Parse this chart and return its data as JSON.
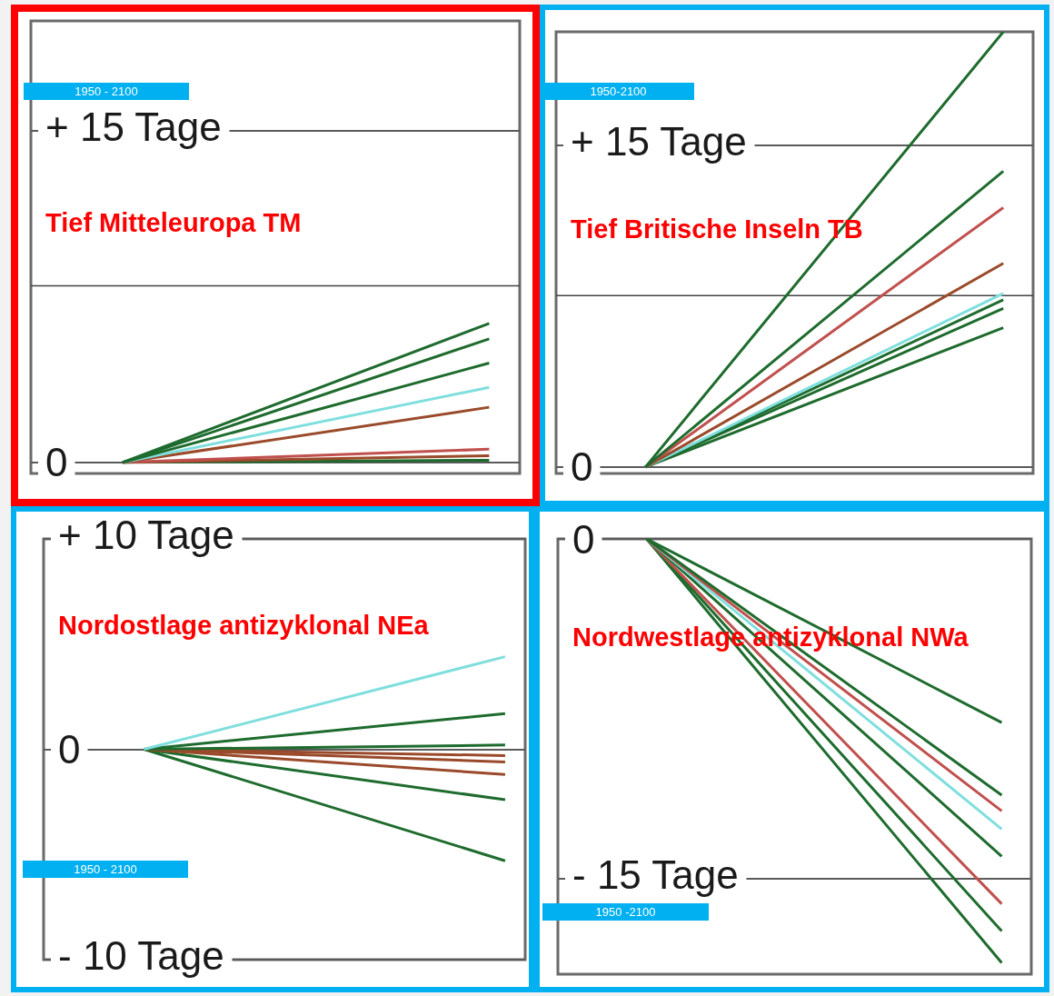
{
  "chart_data": [
    {
      "type": "line",
      "title": "Tief Mitteleuropa TM",
      "annotations": [
        "1950 - 2100"
      ],
      "categories": [
        null,
        null,
        null,
        null,
        null,
        null,
        null,
        null
      ],
      "ylim": [
        -0.5,
        20
      ],
      "yticks": [
        {
          "value": 15,
          "label": "+ 15 Tage"
        },
        {
          "value": 0,
          "label": "0"
        }
      ],
      "tick_labels": "y",
      "grid": "y",
      "marker": "none",
      "ref_lines": [
        {
          "axis": "y",
          "value": 8,
          "color": "#444444"
        }
      ],
      "series": [
        {
          "color": "#1e6b2e",
          "values": [
            null,
            0,
            null,
            null,
            null,
            null,
            null,
            6.3
          ]
        },
        {
          "color": "#1e6b2e",
          "values": [
            null,
            0,
            null,
            null,
            null,
            null,
            null,
            5.6
          ]
        },
        {
          "color": "#1e6b2e",
          "values": [
            null,
            0,
            null,
            null,
            null,
            null,
            null,
            4.5
          ]
        },
        {
          "color": "#7fdede",
          "values": [
            null,
            0,
            null,
            null,
            null,
            null,
            null,
            3.4
          ]
        },
        {
          "color": "#9a4a2a",
          "values": [
            null,
            0,
            null,
            null,
            null,
            null,
            null,
            2.5
          ]
        },
        {
          "color": "#c0504d",
          "values": [
            null,
            0,
            null,
            null,
            null,
            null,
            null,
            0.6
          ]
        },
        {
          "color": "#9a4a2a",
          "values": [
            null,
            0,
            null,
            null,
            null,
            null,
            null,
            0.3
          ]
        },
        {
          "color": "#1e6b2e",
          "values": [
            null,
            0,
            null,
            null,
            null,
            null,
            null,
            0.1
          ]
        }
      ]
    },
    {
      "type": "line",
      "title": "Tief Britische Inseln TB",
      "annotations": [
        "1950-2100"
      ],
      "categories": [
        null,
        null,
        null,
        null,
        null,
        null,
        null,
        null
      ],
      "ylim": [
        -0.3,
        20.3
      ],
      "yticks": [
        {
          "value": 15,
          "label": "+ 15 Tage"
        },
        {
          "value": 0,
          "label": "0"
        }
      ],
      "tick_labels": "y",
      "grid": "y",
      "marker": "none",
      "ref_lines": [
        {
          "axis": "y",
          "value": 8,
          "color": "#444444"
        }
      ],
      "series": [
        {
          "color": "#1e6b2e",
          "values": [
            null,
            0,
            null,
            null,
            null,
            null,
            null,
            20.3
          ]
        },
        {
          "color": "#1e6b2e",
          "values": [
            null,
            0,
            null,
            null,
            null,
            null,
            null,
            13.8
          ]
        },
        {
          "color": "#c0504d",
          "values": [
            null,
            0,
            null,
            null,
            null,
            null,
            null,
            12.1
          ]
        },
        {
          "color": "#9a4a2a",
          "values": [
            null,
            0,
            null,
            null,
            null,
            null,
            null,
            9.5
          ]
        },
        {
          "color": "#7fdede",
          "values": [
            null,
            0,
            null,
            null,
            null,
            null,
            null,
            8.1
          ]
        },
        {
          "color": "#1e6b2e",
          "values": [
            null,
            0,
            null,
            null,
            null,
            null,
            null,
            7.8
          ]
        },
        {
          "color": "#1e6b2e",
          "values": [
            null,
            0,
            null,
            null,
            null,
            null,
            null,
            7.4
          ]
        },
        {
          "color": "#1e6b2e",
          "values": [
            null,
            0,
            null,
            null,
            null,
            null,
            null,
            6.5
          ]
        }
      ]
    },
    {
      "type": "line",
      "title": "Nordostlage antizyklonal NEa",
      "annotations": [
        "1950 - 2100"
      ],
      "categories": [
        null,
        null,
        null,
        null,
        null,
        null,
        null,
        null,
        null,
        null,
        null,
        null
      ],
      "ylim": [
        -10,
        10
      ],
      "yticks": [
        {
          "value": 10,
          "label": "+ 10 Tage"
        },
        {
          "value": 0,
          "label": "0"
        },
        {
          "value": -10,
          "label": "- 10 Tage"
        }
      ],
      "tick_labels": "y",
      "grid": "y",
      "marker": "none",
      "series": [
        {
          "color": "#7fdede",
          "values": [
            null,
            null,
            0,
            null,
            null,
            null,
            null,
            null,
            null,
            null,
            null,
            4.4
          ]
        },
        {
          "color": "#1e6b2e",
          "values": [
            null,
            null,
            0,
            null,
            null,
            null,
            null,
            null,
            null,
            null,
            null,
            1.7
          ]
        },
        {
          "color": "#1e6b2e",
          "values": [
            null,
            null,
            0,
            null,
            null,
            null,
            null,
            null,
            null,
            null,
            null,
            0.2
          ]
        },
        {
          "color": "#9a4a2a",
          "values": [
            null,
            null,
            0,
            null,
            null,
            null,
            null,
            null,
            null,
            null,
            null,
            -0.3
          ]
        },
        {
          "color": "#9a4a2a",
          "values": [
            null,
            null,
            0,
            null,
            null,
            null,
            null,
            null,
            null,
            null,
            null,
            -0.6
          ]
        },
        {
          "color": "#9a4a2a",
          "values": [
            null,
            null,
            0,
            null,
            null,
            null,
            null,
            null,
            null,
            null,
            null,
            -1.2
          ]
        },
        {
          "color": "#1e6b2e",
          "values": [
            null,
            null,
            0,
            null,
            null,
            null,
            null,
            null,
            null,
            null,
            null,
            -2.4
          ]
        },
        {
          "color": "#1e6b2e",
          "values": [
            null,
            null,
            0,
            null,
            null,
            null,
            null,
            null,
            null,
            null,
            null,
            -5.3
          ]
        }
      ]
    },
    {
      "type": "line",
      "title": "Nordwestlage antizyklonal NWa",
      "annotations": [
        "1950 -2100"
      ],
      "categories": [
        null,
        null,
        null,
        null,
        null,
        null,
        null,
        null
      ],
      "ylim": [
        -19.2,
        0
      ],
      "yticks": [
        {
          "value": 0,
          "label": "0"
        },
        {
          "value": -15,
          "label": "- 15 Tage"
        }
      ],
      "tick_labels": "y",
      "grid": "y",
      "marker": "none",
      "series": [
        {
          "color": "#1e6b2e",
          "values": [
            null,
            0,
            null,
            null,
            null,
            null,
            null,
            -8.1
          ]
        },
        {
          "color": "#1e6b2e",
          "values": [
            null,
            0,
            null,
            null,
            null,
            null,
            null,
            -11.3
          ]
        },
        {
          "color": "#c0504d",
          "values": [
            null,
            0,
            null,
            null,
            null,
            null,
            null,
            -12.0
          ]
        },
        {
          "color": "#7fdede",
          "values": [
            null,
            0,
            null,
            null,
            null,
            null,
            null,
            -12.8
          ]
        },
        {
          "color": "#1e6b2e",
          "values": [
            null,
            0,
            null,
            null,
            null,
            null,
            null,
            -14.0
          ]
        },
        {
          "color": "#c0504d",
          "values": [
            null,
            0,
            null,
            null,
            null,
            null,
            null,
            -16.1
          ]
        },
        {
          "color": "#1e6b2e",
          "values": [
            null,
            0,
            null,
            null,
            null,
            null,
            null,
            -17.3
          ]
        },
        {
          "color": "#1e6b2e",
          "values": [
            null,
            0,
            null,
            null,
            null,
            null,
            null,
            -18.7
          ]
        }
      ]
    }
  ]
}
